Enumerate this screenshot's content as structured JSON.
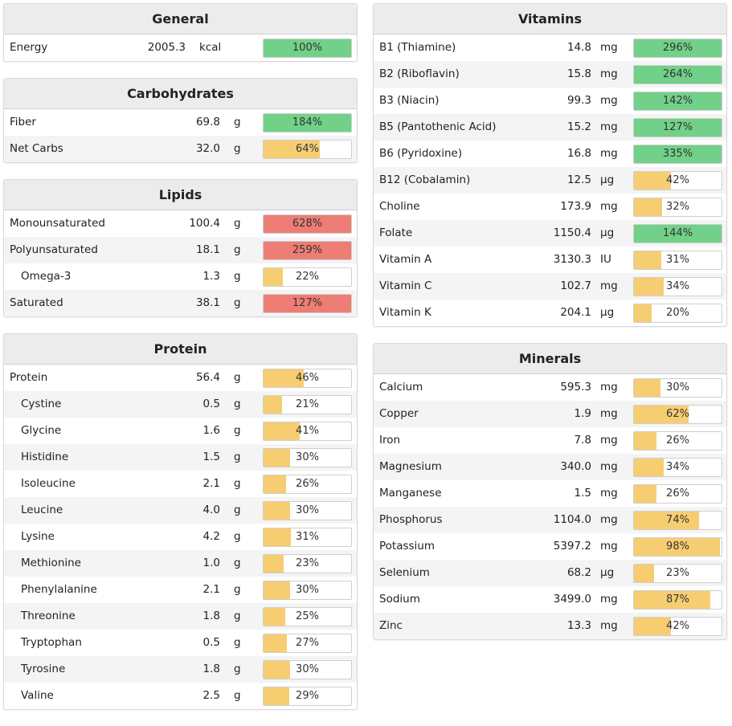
{
  "colors": {
    "green": "#71d188",
    "yellow": "#f7cd72",
    "red": "#ee7d75"
  },
  "left_panels": [
    {
      "title": "General",
      "key": "general",
      "rows": [
        {
          "name": "Energy",
          "amount": "2005.3",
          "unit": "kcal",
          "percent": 100,
          "label": "100%",
          "color": "green"
        }
      ]
    },
    {
      "title": "Carbohydrates",
      "key": "carbohydrates",
      "rows": [
        {
          "name": "Fiber",
          "amount": "69.8",
          "unit": "g",
          "percent": 184,
          "label": "184%",
          "color": "green"
        },
        {
          "name": "Net Carbs",
          "amount": "32.0",
          "unit": "g",
          "percent": 64,
          "label": "64%",
          "color": "yellow"
        }
      ]
    },
    {
      "title": "Lipids",
      "key": "lipids",
      "rows": [
        {
          "name": "Monounsaturated",
          "amount": "100.4",
          "unit": "g",
          "percent": 628,
          "label": "628%",
          "color": "red"
        },
        {
          "name": "Polyunsaturated",
          "amount": "18.1",
          "unit": "g",
          "percent": 259,
          "label": "259%",
          "color": "red"
        },
        {
          "name": "Omega-3",
          "amount": "1.3",
          "unit": "g",
          "percent": 22,
          "label": "22%",
          "color": "yellow",
          "indent": true
        },
        {
          "name": "Saturated",
          "amount": "38.1",
          "unit": "g",
          "percent": 127,
          "label": "127%",
          "color": "red"
        }
      ]
    },
    {
      "title": "Protein",
      "key": "protein",
      "rows": [
        {
          "name": "Protein",
          "amount": "56.4",
          "unit": "g",
          "percent": 46,
          "label": "46%",
          "color": "yellow"
        },
        {
          "name": "Cystine",
          "amount": "0.5",
          "unit": "g",
          "percent": 21,
          "label": "21%",
          "color": "yellow",
          "indent": true
        },
        {
          "name": "Glycine",
          "amount": "1.6",
          "unit": "g",
          "percent": 41,
          "label": "41%",
          "color": "yellow",
          "indent": true
        },
        {
          "name": "Histidine",
          "amount": "1.5",
          "unit": "g",
          "percent": 30,
          "label": "30%",
          "color": "yellow",
          "indent": true
        },
        {
          "name": "Isoleucine",
          "amount": "2.1",
          "unit": "g",
          "percent": 26,
          "label": "26%",
          "color": "yellow",
          "indent": true
        },
        {
          "name": "Leucine",
          "amount": "4.0",
          "unit": "g",
          "percent": 30,
          "label": "30%",
          "color": "yellow",
          "indent": true
        },
        {
          "name": "Lysine",
          "amount": "4.2",
          "unit": "g",
          "percent": 31,
          "label": "31%",
          "color": "yellow",
          "indent": true
        },
        {
          "name": "Methionine",
          "amount": "1.0",
          "unit": "g",
          "percent": 23,
          "label": "23%",
          "color": "yellow",
          "indent": true
        },
        {
          "name": "Phenylalanine",
          "amount": "2.1",
          "unit": "g",
          "percent": 30,
          "label": "30%",
          "color": "yellow",
          "indent": true
        },
        {
          "name": "Threonine",
          "amount": "1.8",
          "unit": "g",
          "percent": 25,
          "label": "25%",
          "color": "yellow",
          "indent": true
        },
        {
          "name": "Tryptophan",
          "amount": "0.5",
          "unit": "g",
          "percent": 27,
          "label": "27%",
          "color": "yellow",
          "indent": true
        },
        {
          "name": "Tyrosine",
          "amount": "1.8",
          "unit": "g",
          "percent": 30,
          "label": "30%",
          "color": "yellow",
          "indent": true
        },
        {
          "name": "Valine",
          "amount": "2.5",
          "unit": "g",
          "percent": 29,
          "label": "29%",
          "color": "yellow",
          "indent": true
        }
      ]
    }
  ],
  "right_panels": [
    {
      "title": "Vitamins",
      "key": "vitamins",
      "rows": [
        {
          "name": "B1 (Thiamine)",
          "amount": "14.8",
          "unit": "mg",
          "percent": 296,
          "label": "296%",
          "color": "green"
        },
        {
          "name": "B2 (Riboflavin)",
          "amount": "15.8",
          "unit": "mg",
          "percent": 264,
          "label": "264%",
          "color": "green"
        },
        {
          "name": "B3 (Niacin)",
          "amount": "99.3",
          "unit": "mg",
          "percent": 142,
          "label": "142%",
          "color": "green"
        },
        {
          "name": "B5 (Pantothenic Acid)",
          "amount": "15.2",
          "unit": "mg",
          "percent": 127,
          "label": "127%",
          "color": "green"
        },
        {
          "name": "B6 (Pyridoxine)",
          "amount": "16.8",
          "unit": "mg",
          "percent": 335,
          "label": "335%",
          "color": "green"
        },
        {
          "name": "B12 (Cobalamin)",
          "amount": "12.5",
          "unit": "µg",
          "percent": 42,
          "label": "42%",
          "color": "yellow"
        },
        {
          "name": "Choline",
          "amount": "173.9",
          "unit": "mg",
          "percent": 32,
          "label": "32%",
          "color": "yellow"
        },
        {
          "name": "Folate",
          "amount": "1150.4",
          "unit": "µg",
          "percent": 144,
          "label": "144%",
          "color": "green"
        },
        {
          "name": "Vitamin A",
          "amount": "3130.3",
          "unit": "IU",
          "percent": 31,
          "label": "31%",
          "color": "yellow"
        },
        {
          "name": "Vitamin C",
          "amount": "102.7",
          "unit": "mg",
          "percent": 34,
          "label": "34%",
          "color": "yellow"
        },
        {
          "name": "Vitamin K",
          "amount": "204.1",
          "unit": "µg",
          "percent": 20,
          "label": "20%",
          "color": "yellow"
        }
      ]
    },
    {
      "title": "Minerals",
      "key": "minerals",
      "rows": [
        {
          "name": "Calcium",
          "amount": "595.3",
          "unit": "mg",
          "percent": 30,
          "label": "30%",
          "color": "yellow"
        },
        {
          "name": "Copper",
          "amount": "1.9",
          "unit": "mg",
          "percent": 62,
          "label": "62%",
          "color": "yellow"
        },
        {
          "name": "Iron",
          "amount": "7.8",
          "unit": "mg",
          "percent": 26,
          "label": "26%",
          "color": "yellow"
        },
        {
          "name": "Magnesium",
          "amount": "340.0",
          "unit": "mg",
          "percent": 34,
          "label": "34%",
          "color": "yellow"
        },
        {
          "name": "Manganese",
          "amount": "1.5",
          "unit": "mg",
          "percent": 26,
          "label": "26%",
          "color": "yellow"
        },
        {
          "name": "Phosphorus",
          "amount": "1104.0",
          "unit": "mg",
          "percent": 74,
          "label": "74%",
          "color": "yellow"
        },
        {
          "name": "Potassium",
          "amount": "5397.2",
          "unit": "mg",
          "percent": 98,
          "label": "98%",
          "color": "yellow"
        },
        {
          "name": "Selenium",
          "amount": "68.2",
          "unit": "µg",
          "percent": 23,
          "label": "23%",
          "color": "yellow"
        },
        {
          "name": "Sodium",
          "amount": "3499.0",
          "unit": "mg",
          "percent": 87,
          "label": "87%",
          "color": "yellow"
        },
        {
          "name": "Zinc",
          "amount": "13.3",
          "unit": "mg",
          "percent": 42,
          "label": "42%",
          "color": "yellow"
        }
      ]
    }
  ]
}
